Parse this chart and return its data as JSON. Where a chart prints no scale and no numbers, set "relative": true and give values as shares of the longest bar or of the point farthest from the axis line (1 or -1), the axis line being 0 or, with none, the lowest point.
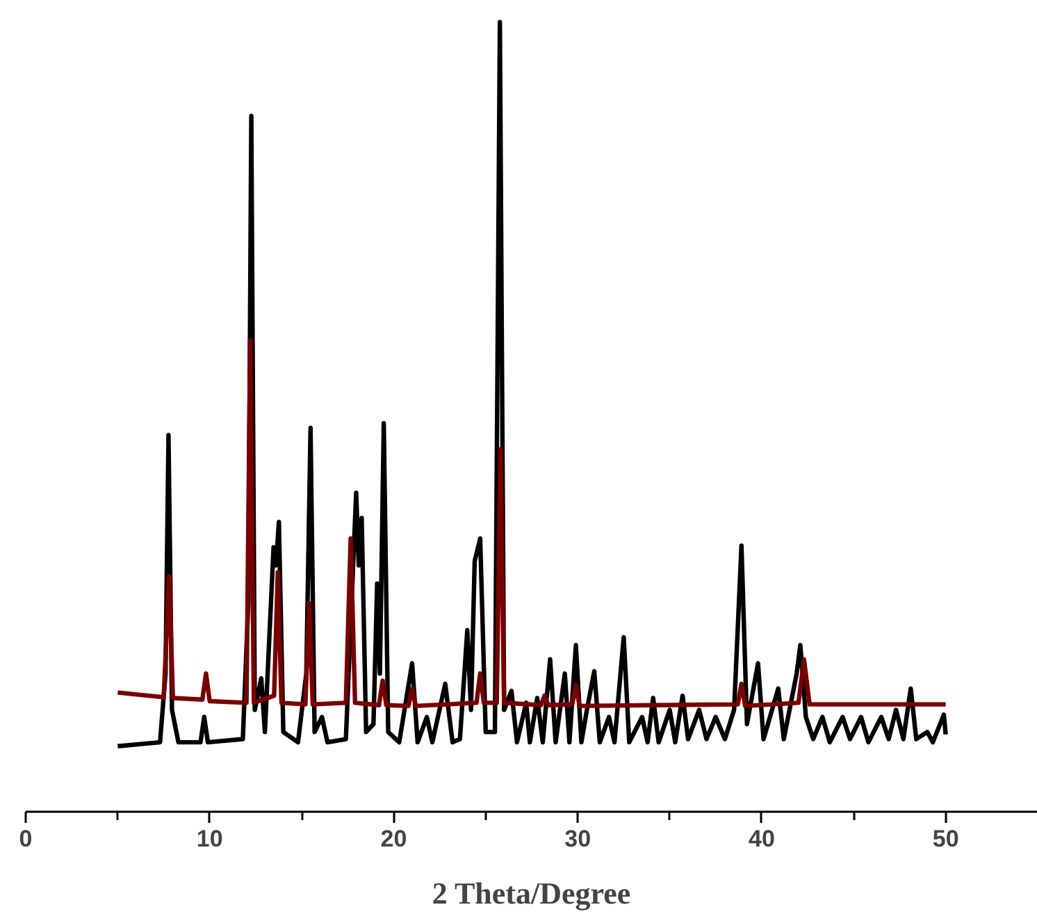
{
  "chart_data": {
    "type": "line",
    "relative": true,
    "xlabel": "2 Theta/Degree",
    "xlim": [
      0,
      55
    ],
    "xticks": [
      0,
      {
        "value": 5,
        "label": null
      },
      10,
      {
        "value": 15,
        "label": null
      },
      20,
      {
        "value": 25,
        "label": null
      },
      30,
      {
        "value": 35,
        "label": null
      },
      40,
      {
        "value": 45,
        "label": null
      },
      50
    ],
    "grid": false,
    "marker": "none",
    "line_style": "solid",
    "tick_labels": "x",
    "series": [
      {
        "color": "#000000",
        "x": [
          5.0,
          7.3,
          7.6,
          7.76,
          7.95,
          8.3,
          9.5,
          9.7,
          9.9,
          11.8,
          12.1,
          12.26,
          12.45,
          12.8,
          13.0,
          13.47,
          13.6,
          13.76,
          14.0,
          14.8,
          15.25,
          15.48,
          15.7,
          16.1,
          16.4,
          17.4,
          17.96,
          18.1,
          18.26,
          18.5,
          18.9,
          19.1,
          19.25,
          19.46,
          19.7,
          20.3,
          21.0,
          21.3,
          21.8,
          22.1,
          22.8,
          23.2,
          23.6,
          24.0,
          24.2,
          24.4,
          24.7,
          25.0,
          25.5,
          25.77,
          26.0,
          26.4,
          26.7,
          27.2,
          27.4,
          27.8,
          28.1,
          28.5,
          28.8,
          29.3,
          29.55,
          29.9,
          30.2,
          30.5,
          30.9,
          31.2,
          31.7,
          32.0,
          32.5,
          32.8,
          33.5,
          33.8,
          34.1,
          34.4,
          35.0,
          35.3,
          35.7,
          36.0,
          36.6,
          37.0,
          37.5,
          38.0,
          38.5,
          38.9,
          39.2,
          39.8,
          40.1,
          40.9,
          41.2,
          41.9,
          42.1,
          42.4,
          42.8,
          43.3,
          43.7,
          44.4,
          44.8,
          45.4,
          45.8,
          46.5,
          46.9,
          47.3,
          47.7,
          48.1,
          48.4,
          49.0,
          49.3,
          49.9,
          50.0
        ],
        "values": [
          0.083,
          0.088,
          0.175,
          0.477,
          0.129,
          0.088,
          0.088,
          0.12,
          0.088,
          0.092,
          0.266,
          0.881,
          0.129,
          0.169,
          0.101,
          0.335,
          0.312,
          0.367,
          0.101,
          0.088,
          0.175,
          0.486,
          0.101,
          0.12,
          0.088,
          0.092,
          0.404,
          0.312,
          0.372,
          0.101,
          0.111,
          0.289,
          0.175,
          0.492,
          0.101,
          0.088,
          0.188,
          0.088,
          0.12,
          0.088,
          0.162,
          0.088,
          0.092,
          0.23,
          0.129,
          0.317,
          0.346,
          0.101,
          0.101,
          1.0,
          0.129,
          0.153,
          0.088,
          0.138,
          0.088,
          0.144,
          0.088,
          0.193,
          0.088,
          0.175,
          0.088,
          0.211,
          0.088,
          0.129,
          0.178,
          0.088,
          0.12,
          0.088,
          0.221,
          0.088,
          0.12,
          0.088,
          0.144,
          0.088,
          0.129,
          0.088,
          0.147,
          0.092,
          0.129,
          0.092,
          0.12,
          0.092,
          0.129,
          0.337,
          0.111,
          0.188,
          0.092,
          0.156,
          0.092,
          0.175,
          0.211,
          0.12,
          0.092,
          0.12,
          0.088,
          0.12,
          0.092,
          0.12,
          0.088,
          0.12,
          0.092,
          0.129,
          0.092,
          0.156,
          0.092,
          0.101,
          0.088,
          0.123,
          0.098
        ]
      },
      {
        "color": "#7b0000",
        "x": [
          5.0,
          7.5,
          7.8,
          8.0,
          9.6,
          9.8,
          10.0,
          12.0,
          12.2,
          12.4,
          13.5,
          13.7,
          13.9,
          15.2,
          15.4,
          15.6,
          17.4,
          17.66,
          17.9,
          19.2,
          19.4,
          19.6,
          20.8,
          21.0,
          21.2,
          24.5,
          24.7,
          24.9,
          25.6,
          25.8,
          26.0,
          28.0,
          28.2,
          28.4,
          29.7,
          29.9,
          30.1,
          38.7,
          38.9,
          39.1,
          42.0,
          42.3,
          42.6,
          50.0
        ],
        "values": [
          0.151,
          0.145,
          0.298,
          0.144,
          0.142,
          0.175,
          0.14,
          0.138,
          0.597,
          0.138,
          0.147,
          0.303,
          0.138,
          0.136,
          0.264,
          0.136,
          0.138,
          0.346,
          0.138,
          0.135,
          0.166,
          0.135,
          0.134,
          0.156,
          0.134,
          0.138,
          0.175,
          0.138,
          0.138,
          0.459,
          0.138,
          0.135,
          0.147,
          0.135,
          0.136,
          0.16,
          0.134,
          0.136,
          0.162,
          0.134,
          0.138,
          0.193,
          0.136,
          0.136
        ]
      }
    ]
  }
}
